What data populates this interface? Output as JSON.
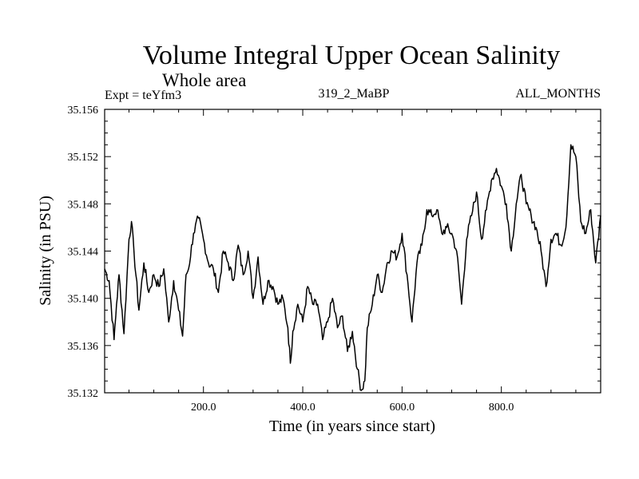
{
  "chart_data": {
    "type": "line",
    "title": "Volume Integral Upper Ocean Salinity",
    "subtitle": "Whole area",
    "experiment": "Expt = teYfm3",
    "run_label": "319_2_MaBP",
    "months_label": "ALL_MONTHS",
    "xlabel": "Time (in years since start)",
    "ylabel": "Salinity (in PSU)",
    "xlim": [
      1,
      1000
    ],
    "ylim": [
      35.132,
      35.156
    ],
    "x_ticks": [
      200,
      400,
      600,
      800
    ],
    "x_tick_labels": [
      "200.0",
      "400.0",
      "600.0",
      "800.0"
    ],
    "y_ticks": [
      35.132,
      35.136,
      35.14,
      35.144,
      35.148,
      35.152,
      35.156
    ],
    "y_tick_labels": [
      "35.132",
      "35.136",
      "35.140",
      "35.144",
      "35.148",
      "35.152",
      "35.156"
    ],
    "grid": false,
    "color": "#000000",
    "series": [
      {
        "name": "salinity",
        "x": [
          1,
          10,
          20,
          25,
          30,
          40,
          50,
          55,
          60,
          70,
          80,
          90,
          100,
          110,
          120,
          130,
          140,
          150,
          158,
          165,
          170,
          180,
          190,
          200,
          210,
          220,
          230,
          240,
          250,
          260,
          270,
          280,
          290,
          300,
          310,
          320,
          330,
          340,
          350,
          360,
          370,
          375,
          380,
          390,
          400,
          410,
          420,
          430,
          440,
          450,
          460,
          470,
          480,
          490,
          500,
          510,
          518,
          525,
          530,
          540,
          550,
          560,
          570,
          580,
          590,
          600,
          610,
          620,
          630,
          640,
          650,
          660,
          670,
          680,
          690,
          700,
          710,
          720,
          730,
          740,
          750,
          760,
          770,
          780,
          790,
          800,
          810,
          820,
          830,
          840,
          850,
          860,
          870,
          880,
          890,
          900,
          910,
          920,
          930,
          940,
          950,
          960,
          970,
          980,
          990,
          1000
        ],
        "values": [
          35.1425,
          35.1415,
          35.1365,
          35.1395,
          35.142,
          35.137,
          35.145,
          35.1465,
          35.144,
          35.139,
          35.143,
          35.1405,
          35.142,
          35.141,
          35.1425,
          35.138,
          35.1415,
          35.139,
          35.1368,
          35.142,
          35.1425,
          35.1455,
          35.1468,
          35.145,
          35.143,
          35.1425,
          35.1405,
          35.144,
          35.143,
          35.1415,
          35.1445,
          35.142,
          35.144,
          35.14,
          35.1435,
          35.1395,
          35.1415,
          35.141,
          35.1395,
          35.14,
          35.1375,
          35.1345,
          35.1372,
          35.1395,
          35.138,
          35.141,
          35.1395,
          35.1395,
          35.1365,
          35.138,
          35.14,
          35.1375,
          35.1385,
          35.1355,
          35.1372,
          35.134,
          35.1322,
          35.133,
          35.1375,
          35.1395,
          35.142,
          35.1405,
          35.143,
          35.144,
          35.1435,
          35.1455,
          35.142,
          35.138,
          35.143,
          35.1445,
          35.1475,
          35.147,
          35.1475,
          35.1455,
          35.146,
          35.1455,
          35.144,
          35.1395,
          35.145,
          35.147,
          35.149,
          35.145,
          35.1475,
          35.15,
          35.151,
          35.1495,
          35.148,
          35.144,
          35.148,
          35.1505,
          35.148,
          35.147,
          35.146,
          35.144,
          35.141,
          35.145,
          35.1455,
          35.1445,
          35.146,
          35.153,
          35.152,
          35.1465,
          35.1455,
          35.1475,
          35.143,
          35.147
        ]
      }
    ]
  }
}
